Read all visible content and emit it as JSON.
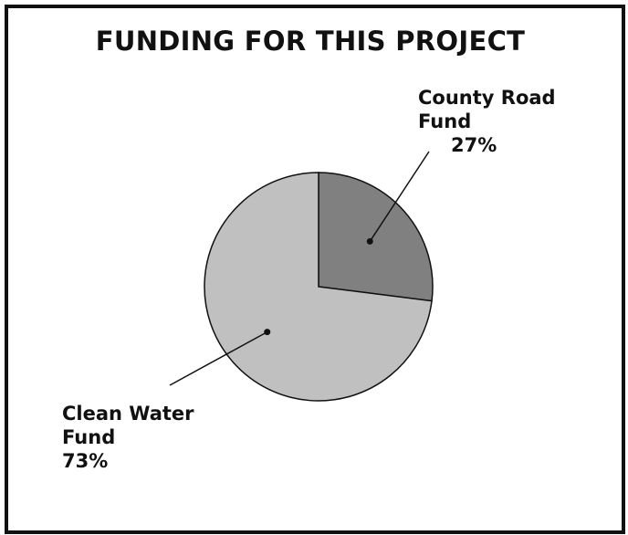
{
  "chart_data": {
    "type": "pie",
    "title": "FUNDING FOR THIS PROJECT",
    "slices": [
      {
        "label_lines": [
          "County Road",
          "Fund"
        ],
        "value_label": "27%",
        "value": 27,
        "color": "#808080"
      },
      {
        "label_lines": [
          "Clean Water",
          "Fund"
        ],
        "value_label": "73%",
        "value": 73,
        "color": "#c0c0c0"
      }
    ],
    "legend": "none",
    "label_style": "callout lines with dot markers"
  },
  "colors": {
    "border": "#111111",
    "background": "#ffffff",
    "outline": "#111111"
  }
}
